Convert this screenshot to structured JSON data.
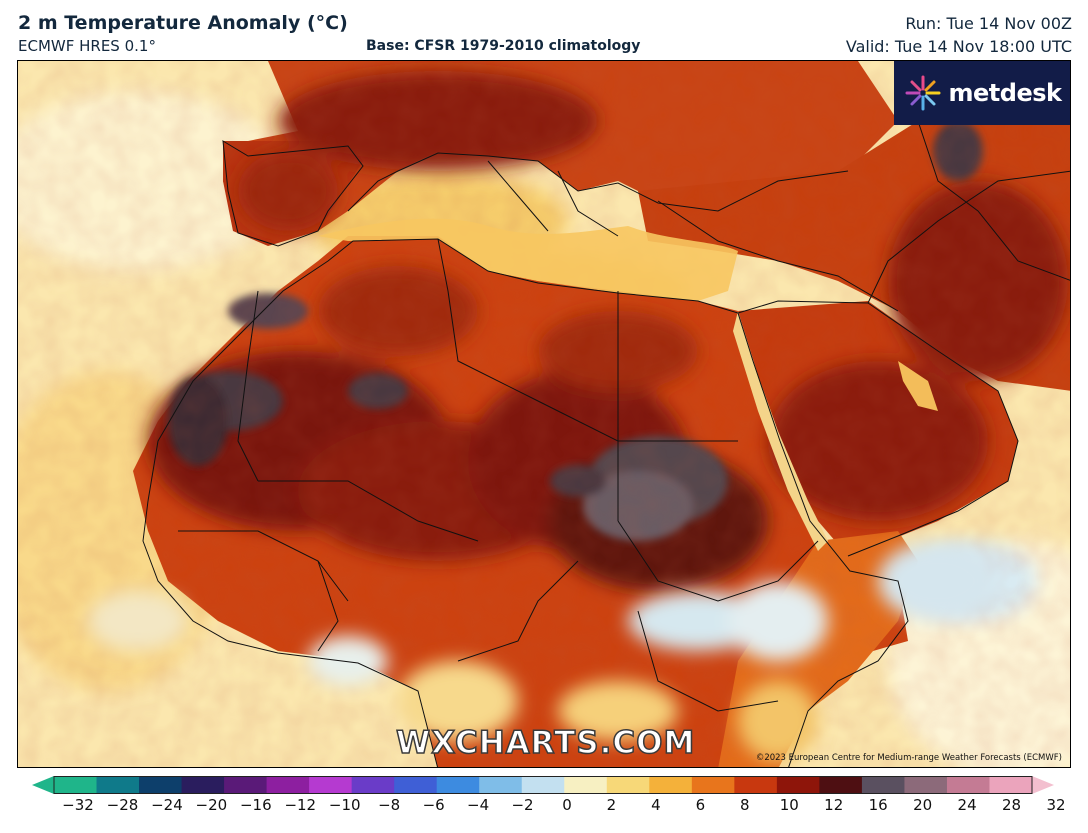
{
  "header": {
    "title": "2 m Temperature Anomaly (°C)",
    "model": "ECMWF HRES 0.1°",
    "base": "Base: CFSR 1979-2010 climatology",
    "run": "Run: Tue 14 Nov 00Z",
    "valid": "Valid: Tue 14 Nov 18:00 UTC"
  },
  "branding": {
    "logo_text": "metdesk",
    "logo_icon": "metdesk-starburst-icon",
    "watermark": "WXCHARTS.COM",
    "copyright": "©2023 European Centre for Medium-range Weather Forecasts (ECMWF)"
  },
  "colorbar": {
    "ticks": [
      "−32",
      "−28",
      "−24",
      "−20",
      "−16",
      "−12",
      "−10",
      "−8",
      "−6",
      "−4",
      "−2",
      "0",
      "2",
      "4",
      "6",
      "8",
      "10",
      "12",
      "16",
      "20",
      "24",
      "28",
      "32"
    ],
    "colors": [
      "#1fb58a",
      "#0f7a8a",
      "#0d3f6b",
      "#2a1d5e",
      "#5a1a78",
      "#8d1fa0",
      "#b53ad0",
      "#6a3cc8",
      "#3f5fd6",
      "#3d8be0",
      "#7fbde8",
      "#c3e0f0",
      "#f7f0c2",
      "#f7d878",
      "#f4b13a",
      "#e8751c",
      "#c8380f",
      "#8e150a",
      "#4e0f12",
      "#5a5060",
      "#8c6a7a",
      "#c47b94",
      "#eba4bc"
    ],
    "under_color": "#1fb58a",
    "over_color": "#f3bfcf"
  },
  "map": {
    "region": "North Africa, Middle East, Southern Europe",
    "ocean_color": "#fbe9b3",
    "warm_color": "#c8380f",
    "very_warm_color": "#6b1410",
    "extreme_color": "#4a3a42"
  }
}
